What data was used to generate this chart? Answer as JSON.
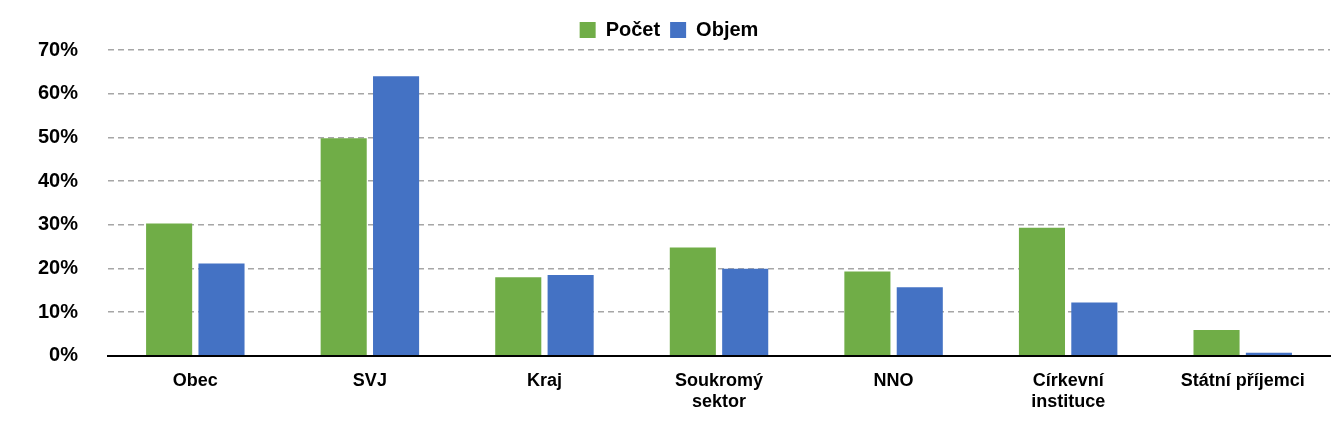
{
  "chart_data": {
    "type": "bar",
    "categories": [
      "Obec",
      "SVJ",
      "Kraj",
      "Soukromý sektor",
      "NNO",
      "Církevní instituce",
      "Státní příjemci"
    ],
    "series": [
      {
        "name": "Počet",
        "color": "#70ad47",
        "values": [
          30.3,
          49.8,
          18.0,
          24.8,
          19.3,
          29.3,
          5.9
        ]
      },
      {
        "name": "Objem",
        "color": "#4472c4",
        "values": [
          21.1,
          64.0,
          18.5,
          19.9,
          15.7,
          12.2,
          0.7
        ]
      }
    ],
    "ylim": [
      0,
      70
    ],
    "yticks": [
      {
        "value": 0,
        "label": "0%"
      },
      {
        "value": 10,
        "label": "10%"
      },
      {
        "value": 20,
        "label": "20%"
      },
      {
        "value": 30,
        "label": "30%"
      },
      {
        "value": 40,
        "label": "40%"
      },
      {
        "value": 50,
        "label": "50%"
      },
      {
        "value": 60,
        "label": "60%"
      },
      {
        "value": 70,
        "label": "70%"
      }
    ],
    "grid": "y",
    "legend": "top"
  }
}
